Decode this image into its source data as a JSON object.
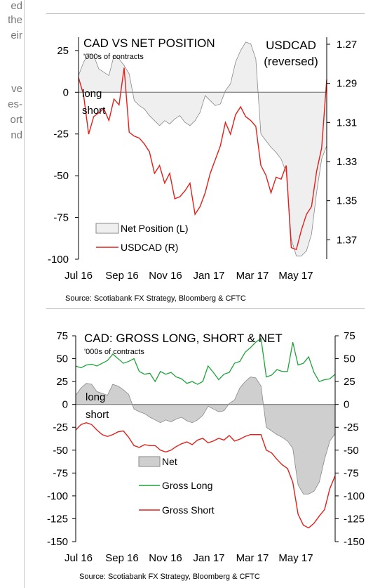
{
  "sidebar_fragments": [
    "ed",
    "the",
    "eir",
    "ve",
    "es-",
    "ort",
    "nd"
  ],
  "colors": {
    "area_fill_top": "#efefef",
    "area_fill_bottom": "#cfcfcf",
    "area_stroke": "#888888",
    "red": "#e0201b",
    "green": "#1fa33a",
    "zero_line": "#808080"
  },
  "chart_data": [
    {
      "type": "area",
      "title": "CAD VS NET POSITION",
      "subtitle": "'000s of contracts",
      "right_title": [
        "USDCAD",
        "(reversed)"
      ],
      "source": "Source: Scotiabank FX Strategy, Bloomberg & CFTC",
      "x_ticks": [
        "Jul 16",
        "Sep 16",
        "Nov 16",
        "Jan 17",
        "Mar 17",
        "May 17"
      ],
      "left_axis": {
        "ticks": [
          "25",
          "0",
          "-25",
          "-50",
          "-75",
          "-100"
        ],
        "range": [
          -100,
          30
        ]
      },
      "right_axis": {
        "ticks": [
          "1.27",
          "1.29",
          "1.31",
          "1.33",
          "1.35",
          "1.37"
        ],
        "range": [
          1.27,
          1.39
        ],
        "reversed": true
      },
      "annotations": {
        "long": "long",
        "short": "short"
      },
      "legend": [
        {
          "label": "Net Position (L)"
        },
        {
          "label": "USDCAD (R)"
        }
      ],
      "series": [
        {
          "name": "Net Position (L)",
          "axis": "left",
          "kind": "area",
          "values": [
            10,
            18,
            23,
            22,
            14,
            12,
            10,
            22,
            20,
            16,
            11,
            -5,
            -8,
            -10,
            -14,
            -17,
            -20,
            -17,
            -19,
            -16,
            -14,
            -18,
            -20,
            -17,
            -12,
            -2,
            -5,
            -8,
            -7,
            1,
            5,
            18,
            25,
            30,
            29,
            20,
            -25,
            -29,
            -33,
            -36,
            -40,
            -48,
            -88,
            -98,
            -98,
            -95,
            -85,
            -60,
            -40,
            -32
          ]
        },
        {
          "name": "USDCAD (R)",
          "axis": "right",
          "kind": "line",
          "values": [
            1.287,
            1.296,
            1.316,
            1.307,
            1.305,
            1.303,
            1.309,
            1.298,
            1.301,
            1.282,
            1.315,
            1.317,
            1.318,
            1.321,
            1.325,
            1.336,
            1.332,
            1.341,
            1.336,
            1.349,
            1.348,
            1.345,
            1.341,
            1.357,
            1.353,
            1.346,
            1.336,
            1.329,
            1.322,
            1.31,
            1.316,
            1.306,
            1.302,
            1.307,
            1.309,
            1.312,
            1.332,
            1.337,
            1.346,
            1.338,
            1.339,
            1.332,
            1.374,
            1.375,
            1.365,
            1.357,
            1.353,
            1.335,
            1.323,
            1.288
          ]
        }
      ]
    },
    {
      "type": "line",
      "title": "CAD: GROSS LONG, SHORT & NET",
      "subtitle": "'000s of contracts",
      "source": "Source: Scotiabank FX Strategy, Bloomberg & CFTC",
      "x_ticks": [
        "Jul 16",
        "Sep 16",
        "Nov 16",
        "Jan 17",
        "Mar 17",
        "May 17"
      ],
      "axis": {
        "ticks": [
          "75",
          "50",
          "25",
          "0",
          "-25",
          "-50",
          "-75",
          "-100",
          "-125",
          "-150"
        ],
        "range": [
          -150,
          75
        ]
      },
      "annotations": {
        "long": "long",
        "short": "short"
      },
      "legend": [
        {
          "label": "Net"
        },
        {
          "label": "Gross Long"
        },
        {
          "label": "Gross Short"
        }
      ],
      "series": [
        {
          "name": "Net",
          "kind": "area",
          "values": [
            10,
            18,
            23,
            22,
            14,
            12,
            10,
            22,
            20,
            16,
            11,
            -5,
            -8,
            -10,
            -14,
            -17,
            -20,
            -17,
            -19,
            -16,
            -14,
            -18,
            -20,
            -17,
            -12,
            -2,
            -5,
            -8,
            -7,
            1,
            5,
            18,
            25,
            30,
            29,
            20,
            -25,
            -29,
            -33,
            -36,
            -40,
            -48,
            -88,
            -98,
            -98,
            -95,
            -85,
            -60,
            -40,
            -32
          ]
        },
        {
          "name": "Gross Long",
          "kind": "line",
          "values": [
            42,
            40,
            43,
            44,
            42,
            45,
            48,
            55,
            50,
            45,
            47,
            50,
            36,
            33,
            34,
            25,
            36,
            33,
            35,
            30,
            28,
            23,
            25,
            22,
            25,
            42,
            35,
            27,
            33,
            35,
            45,
            47,
            57,
            62,
            68,
            72,
            30,
            32,
            38,
            36,
            36,
            68,
            43,
            45,
            52,
            35,
            25,
            27,
            28,
            33
          ]
        },
        {
          "name": "Gross Short",
          "kind": "line",
          "values": [
            -28,
            -22,
            -20,
            -22,
            -28,
            -33,
            -35,
            -33,
            -30,
            -29,
            -36,
            -45,
            -47,
            -44,
            -45,
            -45,
            -50,
            -52,
            -50,
            -46,
            -43,
            -41,
            -44,
            -39,
            -37,
            -42,
            -40,
            -37,
            -39,
            -34,
            -40,
            -38,
            -35,
            -33,
            -33,
            -33,
            -50,
            -53,
            -60,
            -66,
            -70,
            -85,
            -120,
            -132,
            -135,
            -130,
            -122,
            -115,
            -92,
            -78
          ]
        }
      ]
    }
  ]
}
